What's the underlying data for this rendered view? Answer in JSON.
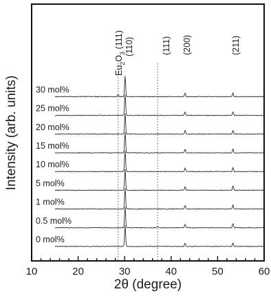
{
  "chart_data": {
    "type": "line",
    "xlabel": "2θ (degree)",
    "ylabel": "Intensity (arb. units)",
    "xlim": [
      10,
      60
    ],
    "x_ticks": [
      "10",
      "20",
      "30",
      "40",
      "50",
      "60"
    ],
    "grid": false,
    "series": [
      {
        "name": "0 mol%",
        "peaks": [
          {
            "x": 30.1,
            "h": 1.0
          },
          {
            "x": 43.0,
            "h": 0.16
          },
          {
            "x": 53.3,
            "h": 0.18
          }
        ]
      },
      {
        "name": "0.5 mol%",
        "peaks": [
          {
            "x": 30.1,
            "h": 1.0
          },
          {
            "x": 37.1,
            "h": 0.06
          },
          {
            "x": 43.0,
            "h": 0.17
          },
          {
            "x": 53.3,
            "h": 0.2
          }
        ]
      },
      {
        "name": "1 mol%",
        "peaks": [
          {
            "x": 30.1,
            "h": 1.0
          },
          {
            "x": 43.0,
            "h": 0.18
          },
          {
            "x": 53.3,
            "h": 0.2
          }
        ]
      },
      {
        "name": "5 mol%",
        "peaks": [
          {
            "x": 30.1,
            "h": 1.0
          },
          {
            "x": 43.0,
            "h": 0.18
          },
          {
            "x": 53.3,
            "h": 0.2
          }
        ]
      },
      {
        "name": "10 mol%",
        "peaks": [
          {
            "x": 30.1,
            "h": 1.0
          },
          {
            "x": 43.0,
            "h": 0.18
          },
          {
            "x": 53.3,
            "h": 0.2
          }
        ]
      },
      {
        "name": "15 mol%",
        "peaks": [
          {
            "x": 30.1,
            "h": 1.0
          },
          {
            "x": 43.0,
            "h": 0.17
          },
          {
            "x": 53.3,
            "h": 0.18
          }
        ]
      },
      {
        "name": "20 mol%",
        "peaks": [
          {
            "x": 30.1,
            "h": 1.0
          },
          {
            "x": 43.0,
            "h": 0.17
          },
          {
            "x": 53.3,
            "h": 0.18
          }
        ]
      },
      {
        "name": "25 mol%",
        "peaks": [
          {
            "x": 30.1,
            "h": 1.0
          },
          {
            "x": 43.0,
            "h": 0.17
          },
          {
            "x": 53.3,
            "h": 0.18
          }
        ]
      },
      {
        "name": "30 mol%",
        "peaks": [
          {
            "x": 28.6,
            "h": 0.1
          },
          {
            "x": 30.1,
            "h": 1.0
          },
          {
            "x": 43.0,
            "h": 0.17
          },
          {
            "x": 53.3,
            "h": 0.18
          }
        ]
      }
    ],
    "annotations": [
      {
        "text": "Eu2O3 (111)",
        "x": 28.6
      },
      {
        "text": "(110)",
        "x": 30.1
      },
      {
        "text": "(111)",
        "x": 37.1
      },
      {
        "text": "(200)",
        "x": 43.0
      },
      {
        "text": "(211)",
        "x": 53.3
      }
    ],
    "reference_lines_x": [
      28.6,
      37.1
    ]
  }
}
